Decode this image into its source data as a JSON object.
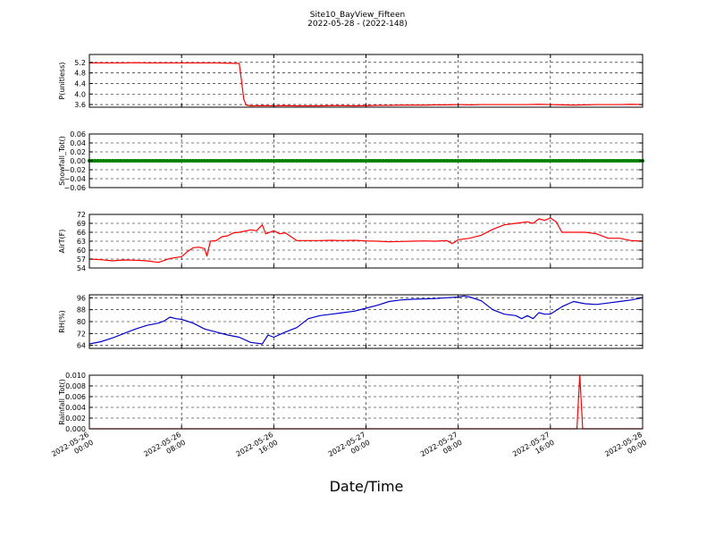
{
  "title": "Site10_BayView_Fifteen",
  "subtitle": "2022-05-28 - (2022-148)",
  "xlabel": "Date/Time",
  "x_ticks": [
    {
      "t": 0,
      "label": [
        "2022-05-26",
        "00:00"
      ]
    },
    {
      "t": 8,
      "label": [
        "2022-05-26",
        "08:00"
      ]
    },
    {
      "t": 16,
      "label": [
        "2022-05-26",
        "16:00"
      ]
    },
    {
      "t": 24,
      "label": [
        "2022-05-27",
        "00:00"
      ]
    },
    {
      "t": 32,
      "label": [
        "2022-05-27",
        "08:00"
      ]
    },
    {
      "t": 40,
      "label": [
        "2022-05-27",
        "16:00"
      ]
    },
    {
      "t": 48,
      "label": [
        "2022-05-28",
        "00:00"
      ]
    }
  ],
  "chart_data": [
    {
      "type": "line",
      "ylabel": "P(unitless)",
      "ylim": [
        3.5,
        5.5
      ],
      "yticks": [
        3.6,
        4.0,
        4.4,
        4.8,
        5.2
      ],
      "ytick_labels": [
        "3.6",
        "4.0",
        "4.4",
        "4.8",
        "5.2"
      ],
      "grid": true,
      "series": [
        {
          "color": "#ff0000",
          "values": [
            [
              0,
              5.18
            ],
            [
              1,
              5.18
            ],
            [
              2,
              5.18
            ],
            [
              3,
              5.18
            ],
            [
              4,
              5.19
            ],
            [
              5,
              5.18
            ],
            [
              6,
              5.18
            ],
            [
              7,
              5.18
            ],
            [
              8,
              5.18
            ],
            [
              9,
              5.18
            ],
            [
              10,
              5.18
            ],
            [
              11,
              5.18
            ],
            [
              12,
              5.17
            ],
            [
              13,
              5.16
            ],
            [
              13.2,
              4.5
            ],
            [
              13.4,
              3.8
            ],
            [
              13.6,
              3.58
            ],
            [
              14,
              3.55
            ],
            [
              15,
              3.56
            ],
            [
              16,
              3.55
            ],
            [
              17,
              3.56
            ],
            [
              18,
              3.55
            ],
            [
              19,
              3.55
            ],
            [
              20,
              3.55
            ],
            [
              21,
              3.56
            ],
            [
              22,
              3.56
            ],
            [
              23,
              3.55
            ],
            [
              24,
              3.56
            ],
            [
              25,
              3.57
            ],
            [
              26,
              3.57
            ],
            [
              27,
              3.58
            ],
            [
              28,
              3.58
            ],
            [
              29,
              3.58
            ],
            [
              30,
              3.59
            ],
            [
              31,
              3.59
            ],
            [
              32,
              3.6
            ],
            [
              33,
              3.59
            ],
            [
              34,
              3.6
            ],
            [
              35,
              3.6
            ],
            [
              36,
              3.6
            ],
            [
              37,
              3.6
            ],
            [
              38,
              3.6
            ],
            [
              39,
              3.61
            ],
            [
              40,
              3.6
            ],
            [
              41,
              3.59
            ],
            [
              42,
              3.58
            ],
            [
              43,
              3.59
            ],
            [
              44,
              3.6
            ],
            [
              45,
              3.6
            ],
            [
              46,
              3.6
            ],
            [
              47,
              3.61
            ],
            [
              48,
              3.6
            ]
          ]
        }
      ]
    },
    {
      "type": "line",
      "ylabel": "Snowfall_Tot()",
      "ylim": [
        -0.06,
        0.06
      ],
      "yticks": [
        -0.06,
        -0.04,
        -0.02,
        0.0,
        0.02,
        0.04,
        0.06
      ],
      "ytick_labels": [
        "−0.06",
        "−0.04",
        "−0.02",
        "0.00",
        "0.02",
        "0.04",
        "0.06"
      ],
      "grid": true,
      "series": [
        {
          "color": "#008000",
          "marker": true,
          "values": [
            [
              0,
              0
            ],
            [
              48,
              0
            ]
          ]
        }
      ]
    },
    {
      "type": "line",
      "ylabel": "AirT(F)",
      "ylim": [
        54,
        72
      ],
      "yticks": [
        54,
        57,
        60,
        63,
        66,
        69,
        72
      ],
      "ytick_labels": [
        "54",
        "57",
        "60",
        "63",
        "66",
        "69",
        "72"
      ],
      "grid": true,
      "series": [
        {
          "color": "#ff0000",
          "values": [
            [
              0,
              57
            ],
            [
              1,
              56.8
            ],
            [
              2,
              56.4
            ],
            [
              3,
              56.7
            ],
            [
              4,
              56.6
            ],
            [
              5,
              56.4
            ],
            [
              6,
              55.9
            ],
            [
              7,
              57.2
            ],
            [
              8,
              57.8
            ],
            [
              8.5,
              59.5
            ],
            [
              9,
              60.8
            ],
            [
              9.5,
              61
            ],
            [
              10,
              60.5
            ],
            [
              10.2,
              58
            ],
            [
              10.5,
              63
            ],
            [
              11,
              63.2
            ],
            [
              11.5,
              64.5
            ],
            [
              12,
              64.8
            ],
            [
              12.5,
              65.8
            ],
            [
              13,
              66
            ],
            [
              14,
              66.8
            ],
            [
              14.5,
              66.5
            ],
            [
              15,
              68.5
            ],
            [
              15.3,
              65.5
            ],
            [
              16,
              66.5
            ],
            [
              16.5,
              65.5
            ],
            [
              17,
              65.8
            ],
            [
              17.5,
              64.5
            ],
            [
              18,
              63.2
            ],
            [
              19,
              63.2
            ],
            [
              20,
              63.2
            ],
            [
              21,
              63.3
            ],
            [
              22,
              63.2
            ],
            [
              23,
              63.3
            ],
            [
              24,
              63.1
            ],
            [
              25,
              63
            ],
            [
              26,
              62.8
            ],
            [
              27,
              62.9
            ],
            [
              28,
              63
            ],
            [
              29,
              63.1
            ],
            [
              30,
              63
            ],
            [
              31,
              63.2
            ],
            [
              31.5,
              62.2
            ],
            [
              32,
              63.5
            ],
            [
              33,
              64
            ],
            [
              34,
              65
            ],
            [
              35,
              67
            ],
            [
              36,
              68.5
            ],
            [
              37,
              69
            ],
            [
              38,
              69.5
            ],
            [
              38.5,
              69
            ],
            [
              39,
              70.5
            ],
            [
              39.5,
              70
            ],
            [
              40,
              70.8
            ],
            [
              40.5,
              69.5
            ],
            [
              41,
              66
            ],
            [
              42,
              66
            ],
            [
              43,
              66
            ],
            [
              44,
              65.5
            ],
            [
              45,
              64
            ],
            [
              46,
              64
            ],
            [
              47,
              63.2
            ],
            [
              48,
              63
            ]
          ]
        }
      ]
    },
    {
      "type": "line",
      "ylabel": "RH(%)",
      "ylim": [
        62,
        98
      ],
      "yticks": [
        64,
        72,
        80,
        88,
        96
      ],
      "ytick_labels": [
        "64",
        "72",
        "80",
        "88",
        "96"
      ],
      "grid": true,
      "series": [
        {
          "color": "#0000cc",
          "values": [
            [
              0,
              65
            ],
            [
              1,
              66.5
            ],
            [
              2,
              69
            ],
            [
              3,
              72
            ],
            [
              4,
              75
            ],
            [
              5,
              77.5
            ],
            [
              6,
              79
            ],
            [
              6.5,
              80.5
            ],
            [
              7,
              83
            ],
            [
              7.5,
              82
            ],
            [
              8,
              81.5
            ],
            [
              9,
              79
            ],
            [
              10,
              75
            ],
            [
              11,
              73
            ],
            [
              12,
              71
            ],
            [
              13,
              69.5
            ],
            [
              14,
              66
            ],
            [
              15,
              65
            ],
            [
              15.5,
              71
            ],
            [
              16,
              69.5
            ],
            [
              17,
              73
            ],
            [
              18,
              76
            ],
            [
              19,
              82
            ],
            [
              20,
              84
            ],
            [
              21,
              85
            ],
            [
              22,
              86
            ],
            [
              23,
              87
            ],
            [
              24,
              89
            ],
            [
              25,
              91
            ],
            [
              26,
              93.5
            ],
            [
              27,
              94.5
            ],
            [
              28,
              95
            ],
            [
              29,
              95.2
            ],
            [
              30,
              95.5
            ],
            [
              31,
              96
            ],
            [
              32,
              96.5
            ],
            [
              32.5,
              97.2
            ],
            [
              33,
              96.5
            ],
            [
              34,
              94
            ],
            [
              35,
              88
            ],
            [
              36,
              85
            ],
            [
              37,
              84
            ],
            [
              37.5,
              82
            ],
            [
              38,
              84
            ],
            [
              38.5,
              82
            ],
            [
              39,
              86
            ],
            [
              39.5,
              85
            ],
            [
              40,
              85
            ],
            [
              41,
              90
            ],
            [
              42,
              93.5
            ],
            [
              43,
              92
            ],
            [
              44,
              91.5
            ],
            [
              45,
              92.5
            ],
            [
              46,
              93.5
            ],
            [
              47,
              94.5
            ],
            [
              48,
              96
            ]
          ]
        }
      ]
    },
    {
      "type": "line",
      "ylabel": "Rainfall_Tot()",
      "ylim": [
        0,
        0.01
      ],
      "yticks": [
        0.0,
        0.002,
        0.004,
        0.006,
        0.008,
        0.01
      ],
      "ytick_labels": [
        "0.000",
        "0.002",
        "0.004",
        "0.006",
        "0.008",
        "0.010"
      ],
      "grid": true,
      "series": [
        {
          "color": "#ff0000",
          "values": [
            [
              0,
              0
            ],
            [
              42.3,
              0
            ],
            [
              42.55,
              0.01
            ],
            [
              42.8,
              0
            ],
            [
              48,
              0
            ]
          ]
        }
      ]
    }
  ]
}
